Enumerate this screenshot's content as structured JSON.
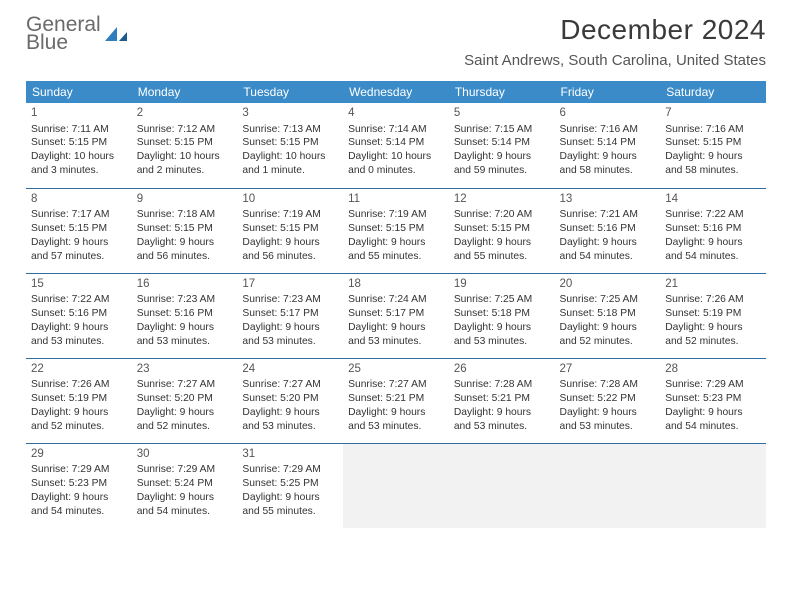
{
  "brand": {
    "line1": "General",
    "line2": "Blue"
  },
  "title": "December 2024",
  "location": "Saint Andrews, South Carolina, United States",
  "dow": [
    "Sunday",
    "Monday",
    "Tuesday",
    "Wednesday",
    "Thursday",
    "Friday",
    "Saturday"
  ],
  "header_bg": "#3b8bc8",
  "header_fg": "#ffffff",
  "rule_color": "#2f6da3",
  "blank_bg": "#f2f2f2",
  "weeks": [
    [
      {
        "n": "1",
        "sr": "7:11 AM",
        "ss": "5:15 PM",
        "dl": "10 hours and 3 minutes."
      },
      {
        "n": "2",
        "sr": "7:12 AM",
        "ss": "5:15 PM",
        "dl": "10 hours and 2 minutes."
      },
      {
        "n": "3",
        "sr": "7:13 AM",
        "ss": "5:15 PM",
        "dl": "10 hours and 1 minute."
      },
      {
        "n": "4",
        "sr": "7:14 AM",
        "ss": "5:14 PM",
        "dl": "10 hours and 0 minutes."
      },
      {
        "n": "5",
        "sr": "7:15 AM",
        "ss": "5:14 PM",
        "dl": "9 hours and 59 minutes."
      },
      {
        "n": "6",
        "sr": "7:16 AM",
        "ss": "5:14 PM",
        "dl": "9 hours and 58 minutes."
      },
      {
        "n": "7",
        "sr": "7:16 AM",
        "ss": "5:15 PM",
        "dl": "9 hours and 58 minutes."
      }
    ],
    [
      {
        "n": "8",
        "sr": "7:17 AM",
        "ss": "5:15 PM",
        "dl": "9 hours and 57 minutes."
      },
      {
        "n": "9",
        "sr": "7:18 AM",
        "ss": "5:15 PM",
        "dl": "9 hours and 56 minutes."
      },
      {
        "n": "10",
        "sr": "7:19 AM",
        "ss": "5:15 PM",
        "dl": "9 hours and 56 minutes."
      },
      {
        "n": "11",
        "sr": "7:19 AM",
        "ss": "5:15 PM",
        "dl": "9 hours and 55 minutes."
      },
      {
        "n": "12",
        "sr": "7:20 AM",
        "ss": "5:15 PM",
        "dl": "9 hours and 55 minutes."
      },
      {
        "n": "13",
        "sr": "7:21 AM",
        "ss": "5:16 PM",
        "dl": "9 hours and 54 minutes."
      },
      {
        "n": "14",
        "sr": "7:22 AM",
        "ss": "5:16 PM",
        "dl": "9 hours and 54 minutes."
      }
    ],
    [
      {
        "n": "15",
        "sr": "7:22 AM",
        "ss": "5:16 PM",
        "dl": "9 hours and 53 minutes."
      },
      {
        "n": "16",
        "sr": "7:23 AM",
        "ss": "5:16 PM",
        "dl": "9 hours and 53 minutes."
      },
      {
        "n": "17",
        "sr": "7:23 AM",
        "ss": "5:17 PM",
        "dl": "9 hours and 53 minutes."
      },
      {
        "n": "18",
        "sr": "7:24 AM",
        "ss": "5:17 PM",
        "dl": "9 hours and 53 minutes."
      },
      {
        "n": "19",
        "sr": "7:25 AM",
        "ss": "5:18 PM",
        "dl": "9 hours and 53 minutes."
      },
      {
        "n": "20",
        "sr": "7:25 AM",
        "ss": "5:18 PM",
        "dl": "9 hours and 52 minutes."
      },
      {
        "n": "21",
        "sr": "7:26 AM",
        "ss": "5:19 PM",
        "dl": "9 hours and 52 minutes."
      }
    ],
    [
      {
        "n": "22",
        "sr": "7:26 AM",
        "ss": "5:19 PM",
        "dl": "9 hours and 52 minutes."
      },
      {
        "n": "23",
        "sr": "7:27 AM",
        "ss": "5:20 PM",
        "dl": "9 hours and 52 minutes."
      },
      {
        "n": "24",
        "sr": "7:27 AM",
        "ss": "5:20 PM",
        "dl": "9 hours and 53 minutes."
      },
      {
        "n": "25",
        "sr": "7:27 AM",
        "ss": "5:21 PM",
        "dl": "9 hours and 53 minutes."
      },
      {
        "n": "26",
        "sr": "7:28 AM",
        "ss": "5:21 PM",
        "dl": "9 hours and 53 minutes."
      },
      {
        "n": "27",
        "sr": "7:28 AM",
        "ss": "5:22 PM",
        "dl": "9 hours and 53 minutes."
      },
      {
        "n": "28",
        "sr": "7:29 AM",
        "ss": "5:23 PM",
        "dl": "9 hours and 54 minutes."
      }
    ],
    [
      {
        "n": "29",
        "sr": "7:29 AM",
        "ss": "5:23 PM",
        "dl": "9 hours and 54 minutes."
      },
      {
        "n": "30",
        "sr": "7:29 AM",
        "ss": "5:24 PM",
        "dl": "9 hours and 54 minutes."
      },
      {
        "n": "31",
        "sr": "7:29 AM",
        "ss": "5:25 PM",
        "dl": "9 hours and 55 minutes."
      },
      null,
      null,
      null,
      null
    ]
  ],
  "labels": {
    "sunrise": "Sunrise: ",
    "sunset": "Sunset: ",
    "daylight": "Daylight: "
  }
}
